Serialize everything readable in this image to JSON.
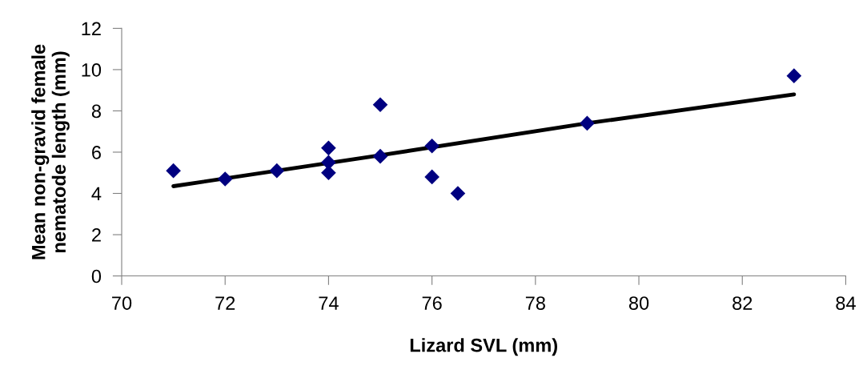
{
  "chart_data": {
    "type": "scatter",
    "xlabel": "Lizard SVL (mm)",
    "ylabel": "Mean non-gravid female\nnematode length (mm)",
    "xlim": [
      70,
      84
    ],
    "xticks": [
      70,
      72,
      74,
      76,
      78,
      80,
      82,
      84
    ],
    "ylim": [
      0,
      12
    ],
    "yticks": [
      0,
      2,
      4,
      6,
      8,
      10,
      12
    ],
    "grid": false,
    "legend": false,
    "series": [
      {
        "color": "#000080",
        "marker": "diamond",
        "x": [
          71,
          72,
          73,
          74,
          74,
          74,
          75,
          75,
          76,
          76,
          76.5,
          79,
          83
        ],
        "values": [
          5.1,
          4.7,
          5.1,
          6.2,
          5.5,
          5.0,
          8.3,
          5.8,
          6.3,
          4.8,
          4.0,
          7.4,
          9.7
        ]
      },
      {
        "type": "line",
        "color": "#000000",
        "marker": "none",
        "line_style": "solid",
        "x": [
          71,
          75,
          79,
          83
        ],
        "values": [
          4.35,
          5.85,
          7.4,
          8.8
        ]
      }
    ]
  }
}
